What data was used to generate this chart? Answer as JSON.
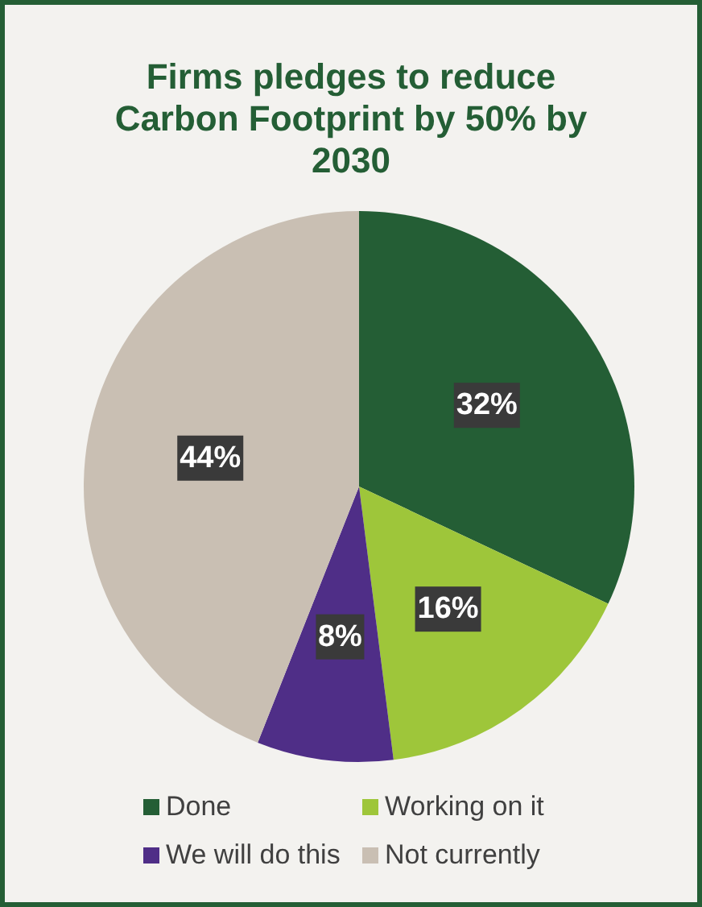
{
  "chart_data": {
    "type": "pie",
    "title": "Firms pledges to reduce Carbon Footprint by 50% by 2030",
    "categories": [
      "Done",
      "Working on it",
      "We will do this",
      "Not currently"
    ],
    "values": [
      32,
      16,
      8,
      44
    ],
    "colors": [
      "#245e35",
      "#9ec63a",
      "#4f2e87",
      "#c9bfb3"
    ],
    "value_labels": [
      "32%",
      "16%",
      "8%",
      "44%"
    ],
    "legend": "bottom"
  }
}
